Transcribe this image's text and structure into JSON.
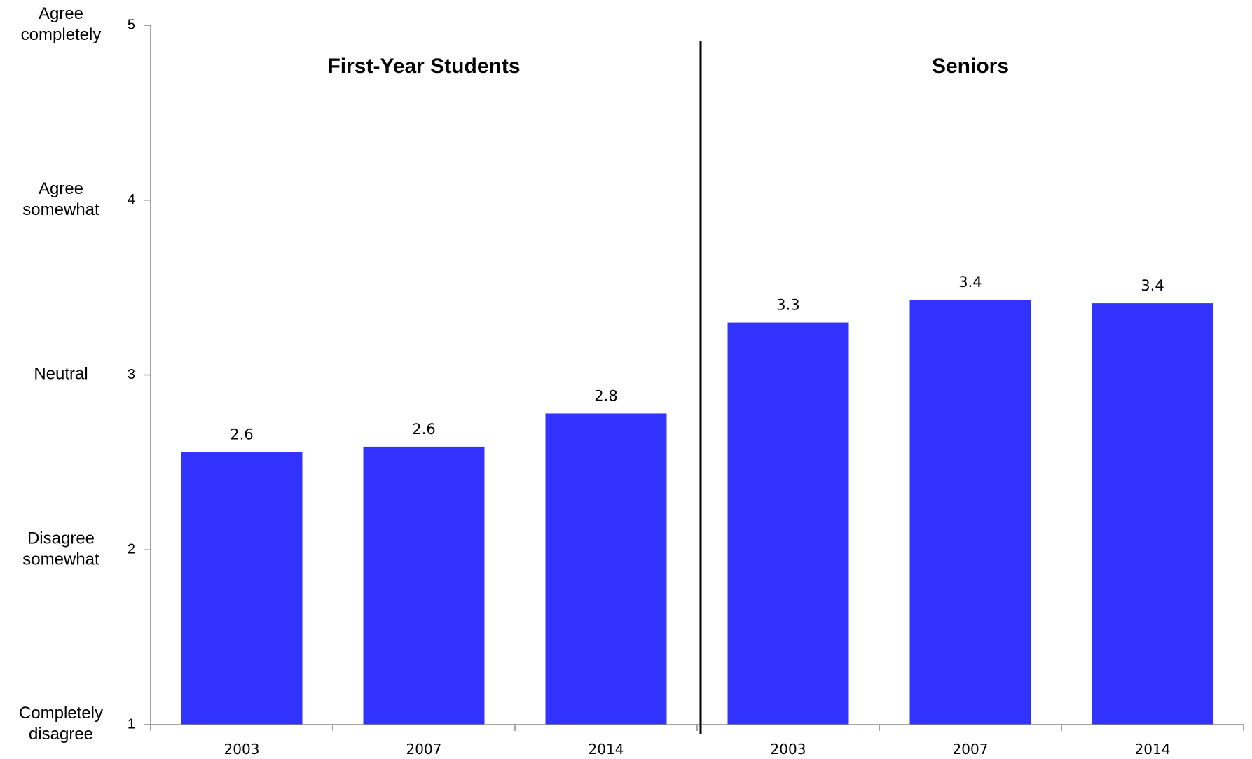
{
  "chart_data": {
    "type": "bar",
    "categories": [
      "2003",
      "2007",
      "2014",
      "2003",
      "2007",
      "2014"
    ],
    "values": [
      2.56,
      2.59,
      2.78,
      3.3,
      3.43,
      3.41
    ],
    "data_labels": [
      "2.6",
      "2.6",
      "2.8",
      "3.3",
      "3.4",
      "3.4"
    ],
    "groups": [
      {
        "title": "First-Year Students",
        "categories": [
          0,
          1,
          2
        ]
      },
      {
        "title": "Seniors",
        "categories": [
          3,
          4,
          5
        ]
      }
    ],
    "ylim": [
      1,
      5
    ],
    "yticks": [
      "1",
      "2",
      "3",
      "4",
      "5"
    ],
    "scale_labels": [
      {
        "value": 1,
        "lines": [
          "Completely",
          "disagree"
        ]
      },
      {
        "value": 2,
        "lines": [
          "Disagree",
          "somewhat"
        ]
      },
      {
        "value": 3,
        "lines": [
          "Neutral"
        ]
      },
      {
        "value": 4,
        "lines": [
          "Agree",
          "somewhat"
        ]
      },
      {
        "value": 5,
        "lines": [
          "Agree",
          "completely"
        ]
      }
    ],
    "bar_color": "#3333FF",
    "axis_color": "#868686",
    "grid": false,
    "legend": "none"
  }
}
